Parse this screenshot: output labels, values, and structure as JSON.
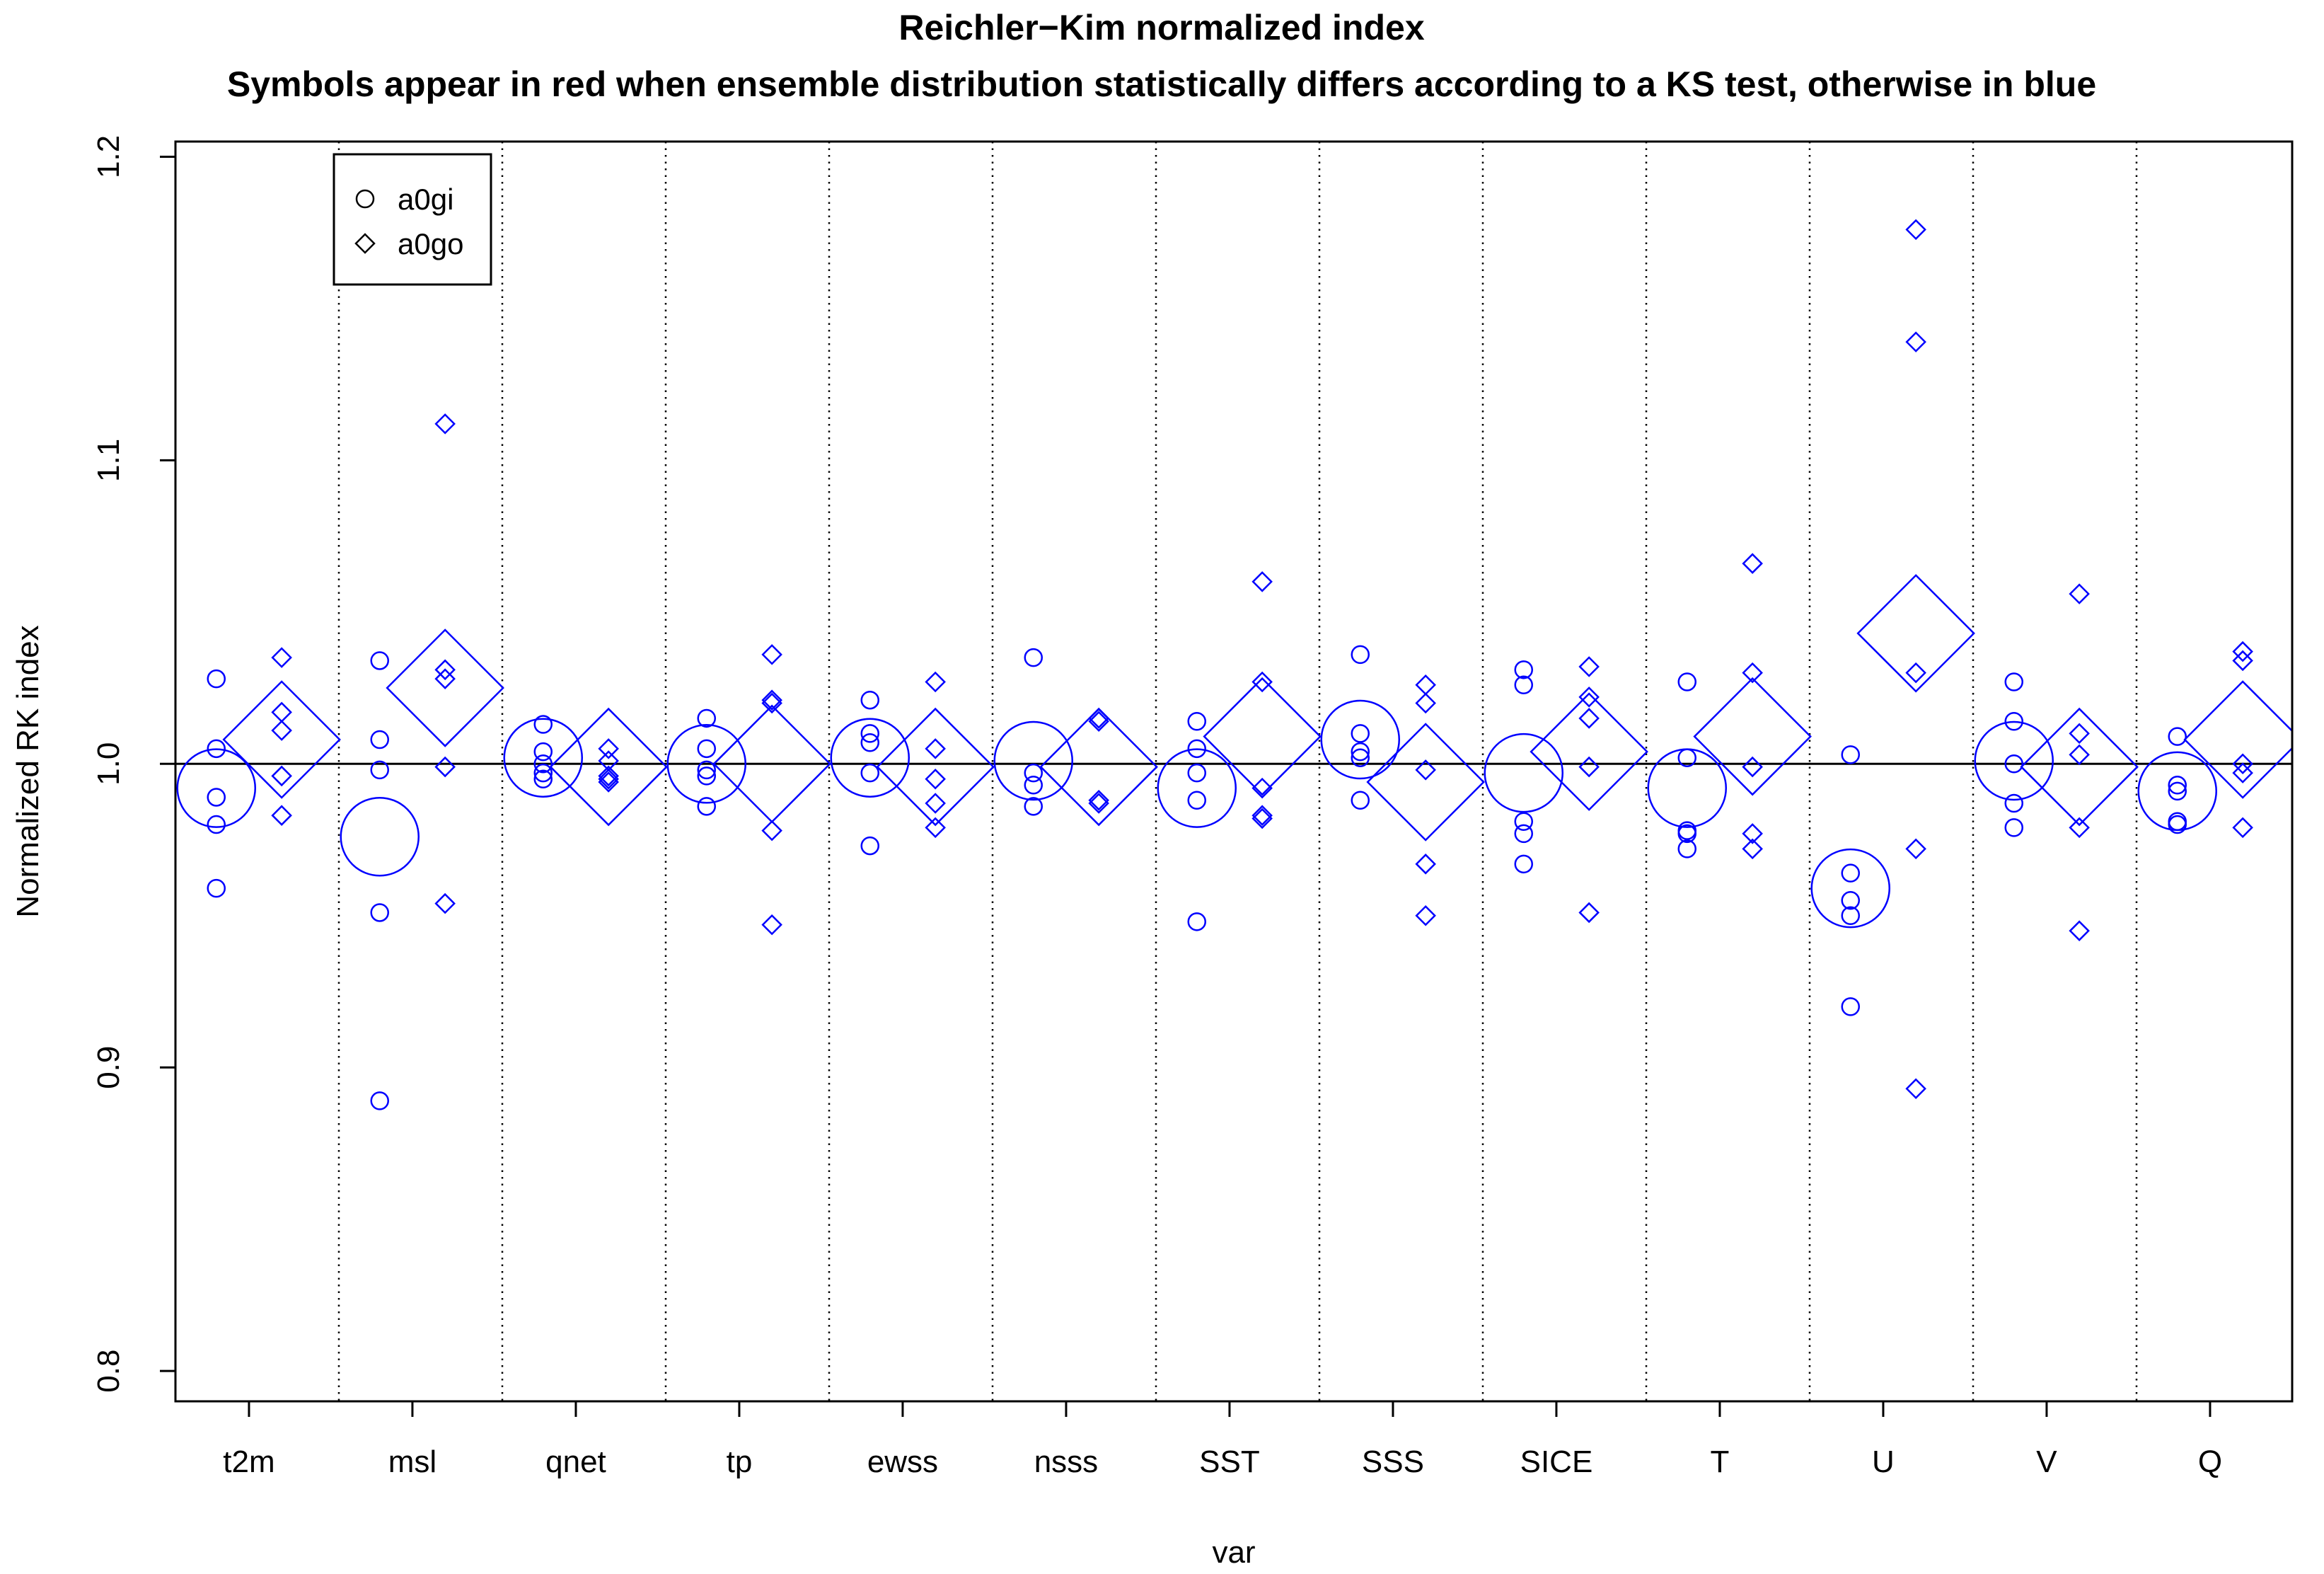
{
  "chart_data": {
    "type": "scatter",
    "title": "Reichler−Kim normalized index",
    "subtitle": "Symbols appear in red when ensemble distribution statistically differs according to a KS test, otherwise in blue",
    "xlabel": "var",
    "ylabel": "Normalized RK index",
    "categories": [
      "t2m",
      "msl",
      "qnet",
      "tp",
      "ewss",
      "nsss",
      "SST",
      "SSS",
      "SICE",
      "T",
      "U",
      "V",
      "Q"
    ],
    "ylim": [
      0.79,
      1.205
    ],
    "yticks": [
      "0.8",
      "0.9",
      "1.0",
      "1.1",
      "1.2"
    ],
    "reference_line": 1.0,
    "grid": false,
    "legend": {
      "position": "top-left",
      "entries": [
        {
          "name": "a0gi",
          "marker": "circle"
        },
        {
          "name": "a0go",
          "marker": "diamond"
        }
      ]
    },
    "colors": {
      "not_different": "#0000ff",
      "different": "#ff0000"
    },
    "series": [
      {
        "name": "a0gi",
        "marker": "circle",
        "members": [
          [
            1.028,
            1.005,
            0.989,
            0.98,
            0.959
          ],
          [
            1.034,
            1.008,
            0.998,
            0.951,
            0.889
          ],
          [
            1.013,
            1.004,
            1.0,
            0.997,
            0.995
          ],
          [
            1.015,
            1.005,
            0.998,
            0.996,
            0.986
          ],
          [
            1.021,
            1.01,
            1.007,
            0.997,
            0.973
          ],
          [
            1.035,
            0.997,
            0.993,
            0.986
          ],
          [
            1.014,
            1.005,
            0.997,
            0.988,
            0.948
          ],
          [
            1.036,
            1.01,
            1.004,
            1.002,
            0.988
          ],
          [
            1.031,
            1.026,
            0.981,
            0.977,
            0.967
          ],
          [
            1.027,
            1.002,
            0.978,
            0.977,
            0.972
          ],
          [
            1.003,
            0.964,
            0.955,
            0.95,
            0.92
          ],
          [
            1.027,
            1.014,
            1.0,
            0.987,
            0.979
          ],
          [
            1.009,
            0.993,
            0.991,
            0.981,
            0.98
          ]
        ],
        "ensemble_mean": [
          0.992,
          0.976,
          1.002,
          1.0,
          1.002,
          1.001,
          0.992,
          1.008,
          0.997,
          0.992,
          0.959,
          1.001,
          0.991
        ],
        "different": [
          false,
          false,
          false,
          false,
          false,
          false,
          false,
          false,
          false,
          false,
          false,
          false,
          false
        ]
      },
      {
        "name": "a0go",
        "marker": "diamond",
        "members": [
          [
            1.035,
            1.017,
            1.011,
            0.996,
            0.983
          ],
          [
            1.112,
            1.031,
            1.028,
            0.999,
            0.954
          ],
          [
            1.005,
            1.001,
            0.996,
            0.995,
            0.994
          ],
          [
            1.036,
            1.021,
            1.02,
            0.978,
            0.947
          ],
          [
            1.027,
            1.005,
            0.995,
            0.987,
            0.979
          ],
          [
            1.015,
            1.014,
            0.988,
            0.987
          ],
          [
            1.06,
            1.027,
            0.992,
            0.983,
            0.982
          ],
          [
            1.026,
            1.02,
            0.998,
            0.967,
            0.95
          ],
          [
            1.032,
            1.022,
            1.015,
            0.999,
            0.951
          ],
          [
            1.066,
            1.03,
            0.999,
            0.977,
            0.972
          ],
          [
            1.176,
            1.139,
            1.03,
            0.972,
            0.893
          ],
          [
            1.056,
            1.01,
            1.003,
            0.979,
            0.945
          ],
          [
            1.037,
            1.034,
            1.0,
            0.997,
            0.979
          ]
        ],
        "ensemble_mean": [
          1.008,
          1.025,
          0.999,
          1.0,
          0.999,
          0.999,
          1.009,
          0.994,
          1.004,
          1.009,
          1.043,
          0.999,
          1.008
        ],
        "different": [
          false,
          false,
          false,
          false,
          false,
          false,
          false,
          false,
          false,
          false,
          false,
          false,
          false
        ]
      }
    ]
  }
}
